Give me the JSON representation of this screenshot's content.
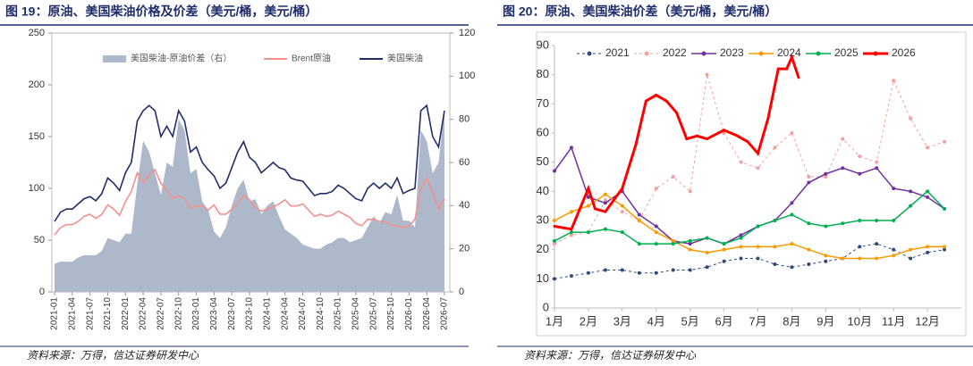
{
  "chart_data": [
    {
      "type": "line",
      "title": "图 19：原油、美国柴油价格及价差（美元/桶，美元/桶）",
      "source": "资料来源：万得，信达证券研发中心",
      "categories": [
        "2021-01",
        null,
        null,
        "2021-04",
        null,
        null,
        "2021-07",
        null,
        null,
        "2021-10",
        null,
        null,
        "2022-01",
        null,
        null,
        "2022-04",
        null,
        null,
        "2022-07",
        null,
        null,
        "2022-10",
        null,
        null,
        "2023-01",
        null,
        null,
        "2023-04",
        null,
        null,
        "2023-07",
        null,
        null,
        "2023-10",
        null,
        null,
        "2024-01",
        null,
        null,
        "2024-04",
        null,
        null,
        "2024-07",
        null,
        null,
        "2024-10",
        null,
        null,
        "2025-01",
        null,
        null,
        "2025-04",
        null,
        null,
        "2025-07",
        null,
        null,
        "2025-10",
        null,
        null,
        "2026-01",
        null,
        null,
        "2026-04",
        null,
        null,
        "2026-07"
      ],
      "ylim": [
        0,
        250
      ],
      "yticks": [
        0,
        50,
        100,
        150,
        200,
        250
      ],
      "y2lim": [
        0,
        120
      ],
      "y2ticks": [
        0,
        20,
        40,
        60,
        80,
        100,
        120
      ],
      "series": [
        {
          "name": "美国柴油-原油价差（右）",
          "type": "area",
          "axis": "y2",
          "color": "#adb9ca",
          "values": [
            13,
            14,
            14,
            14,
            16,
            17,
            17,
            17,
            19,
            25,
            24,
            23,
            27,
            27,
            50,
            70,
            65,
            55,
            45,
            60,
            58,
            80,
            75,
            55,
            57,
            42,
            38,
            28,
            25,
            30,
            40,
            48,
            52,
            42,
            43,
            36,
            40,
            42,
            35,
            29,
            27,
            25,
            22,
            21,
            20,
            20,
            22,
            23,
            25,
            25,
            23,
            24,
            25,
            30,
            35,
            32,
            37,
            36,
            45,
            33,
            33,
            30,
            75,
            70,
            55,
            60,
            85
          ]
        },
        {
          "name": "Brent原油",
          "type": "line",
          "color": "#f4908e",
          "values": [
            55,
            62,
            65,
            65,
            68,
            73,
            75,
            71,
            75,
            84,
            80,
            74,
            87,
            97,
            115,
            105,
            113,
            118,
            105,
            98,
            90,
            93,
            90,
            81,
            83,
            83,
            79,
            84,
            75,
            75,
            80,
            86,
            93,
            89,
            82,
            78,
            80,
            82,
            85,
            89,
            83,
            83,
            85,
            79,
            73,
            75,
            73,
            74,
            78,
            75,
            72,
            66,
            64,
            70,
            70,
            68,
            68,
            64,
            64,
            62,
            64,
            70,
            100,
            110,
            95,
            80,
            90
          ]
        },
        {
          "name": "美国柴油",
          "type": "line",
          "color": "#1f2d6b",
          "values": [
            68,
            77,
            80,
            80,
            85,
            90,
            92,
            88,
            95,
            110,
            105,
            98,
            115,
            125,
            165,
            175,
            180,
            175,
            150,
            160,
            150,
            175,
            165,
            135,
            140,
            125,
            118,
            112,
            100,
            105,
            120,
            135,
            145,
            130,
            125,
            115,
            120,
            125,
            120,
            118,
            110,
            108,
            107,
            100,
            93,
            95,
            95,
            97,
            103,
            100,
            95,
            90,
            88,
            100,
            105,
            100,
            105,
            100,
            110,
            95,
            98,
            100,
            175,
            180,
            150,
            140,
            175
          ]
        }
      ]
    },
    {
      "type": "line",
      "title": "图 20：原油、美国柴油价差（美元/桶，美元/桶）",
      "source": "资料来源：万得，信达证券研发中心",
      "xlim": [
        0,
        12
      ],
      "xticks": [
        {
          "value": 0,
          "label": "1月"
        },
        {
          "value": 1,
          "label": "2月"
        },
        {
          "value": 2,
          "label": "3月"
        },
        {
          "value": 3,
          "label": "4月"
        },
        {
          "value": 4,
          "label": "5月"
        },
        {
          "value": 5,
          "label": "6月"
        },
        {
          "value": 6,
          "label": "7月"
        },
        {
          "value": 7,
          "label": "8月"
        },
        {
          "value": 8,
          "label": "9月"
        },
        {
          "value": 9,
          "label": "10月"
        },
        {
          "value": 10,
          "label": "11月"
        },
        {
          "value": 11,
          "label": "12月"
        }
      ],
      "ylim": [
        0,
        90
      ],
      "yticks": [
        0,
        10,
        20,
        30,
        40,
        50,
        60,
        70,
        80,
        90
      ],
      "series": [
        {
          "name": "2021",
          "color": "#2f4b7c",
          "dash": true,
          "width": 1,
          "x": [
            0,
            0.5,
            1,
            1.5,
            2,
            2.5,
            3,
            3.5,
            4,
            4.5,
            5,
            5.5,
            6,
            6.5,
            7,
            7.5,
            8,
            8.5,
            9,
            9.5,
            10,
            10.5,
            11,
            11.5
          ],
          "values": [
            10,
            11,
            12,
            13,
            13,
            12,
            12,
            13,
            13,
            14,
            16,
            17,
            17,
            15,
            14,
            15,
            16,
            17,
            21,
            22,
            20,
            17,
            19,
            20
          ]
        },
        {
          "name": "2022",
          "color": "#f4a0a0",
          "dash": true,
          "width": 1,
          "x": [
            0,
            0.5,
            1,
            1.5,
            2,
            2.5,
            3,
            3.5,
            4,
            4.5,
            5,
            5.5,
            6,
            6.5,
            7,
            7.5,
            8,
            8.5,
            9,
            9.5,
            10,
            10.5,
            11,
            11.5
          ],
          "values": [
            22,
            25,
            26,
            37,
            33,
            30,
            41,
            45,
            40,
            80,
            60,
            50,
            48,
            55,
            60,
            45,
            45,
            58,
            52,
            50,
            78,
            65,
            55,
            57
          ]
        },
        {
          "name": "2023",
          "color": "#7030a0",
          "dash": false,
          "width": 1.5,
          "x": [
            0,
            0.5,
            1,
            1.5,
            2,
            2.5,
            3,
            3.5,
            4,
            4.5,
            5,
            5.5,
            6,
            6.5,
            7,
            7.5,
            8,
            8.5,
            9,
            9.5,
            10,
            10.5,
            11,
            11.5
          ],
          "values": [
            47,
            55,
            38,
            36,
            40,
            32,
            28,
            23,
            22,
            24,
            22,
            25,
            28,
            30,
            36,
            43,
            46,
            48,
            46,
            48,
            41,
            40,
            38,
            34
          ]
        },
        {
          "name": "2024",
          "color": "#ff9900",
          "dash": false,
          "width": 1.5,
          "x": [
            0,
            0.5,
            1,
            1.5,
            2,
            2.5,
            3,
            3.5,
            4,
            4.5,
            5,
            5.5,
            6,
            6.5,
            7,
            7.5,
            8,
            8.5,
            9,
            9.5,
            10,
            10.5,
            11,
            11.5
          ],
          "values": [
            30,
            33,
            35,
            39,
            35,
            30,
            26,
            23,
            20,
            19,
            20,
            21,
            21,
            21,
            22,
            20,
            18,
            17,
            17,
            17,
            18,
            20,
            21,
            21
          ]
        },
        {
          "name": "2025",
          "color": "#00b050",
          "dash": false,
          "width": 1.5,
          "x": [
            0,
            0.5,
            1,
            1.5,
            2,
            2.5,
            3,
            3.5,
            4,
            4.5,
            5,
            5.5,
            6,
            6.5,
            7,
            7.5,
            8,
            8.5,
            9,
            9.5,
            10,
            10.5,
            11,
            11.5
          ],
          "values": [
            23,
            26,
            26,
            27,
            26,
            22,
            22,
            22,
            23,
            24,
            22,
            24,
            28,
            30,
            32,
            29,
            28,
            29,
            30,
            30,
            30,
            35,
            40,
            34
          ]
        },
        {
          "name": "2026",
          "color": "#ff0000",
          "dash": false,
          "width": 3,
          "x": [
            0,
            0.5,
            1,
            1.2,
            1.5,
            2,
            2.4,
            2.7,
            3,
            3.3,
            3.6,
            3.9,
            4.2,
            4.5,
            5,
            5.4,
            5.7,
            6,
            6.3,
            6.6,
            6.85,
            7,
            7.2
          ],
          "values": [
            28,
            27,
            41,
            34,
            33,
            41,
            56,
            71,
            73,
            71,
            67,
            58,
            59,
            58,
            61,
            59,
            57,
            53,
            65,
            82,
            82,
            86,
            79
          ]
        }
      ]
    }
  ]
}
